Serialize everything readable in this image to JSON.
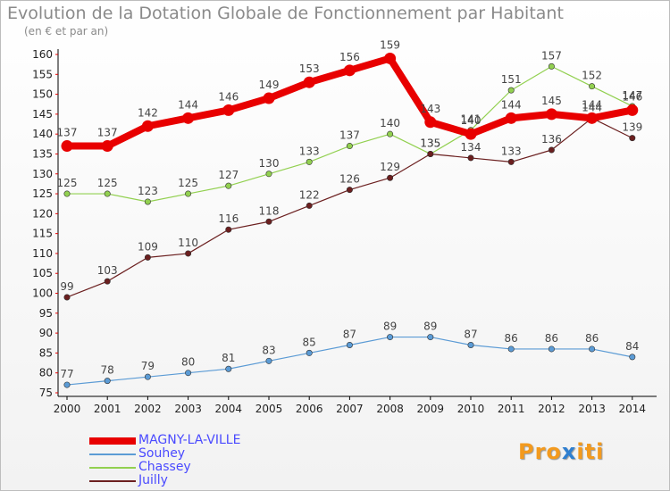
{
  "title": "Evolution de la Dotation Globale de Fonctionnement par Habitant",
  "subtitle": "(en € et par an)",
  "chart_data": {
    "type": "line",
    "categories": [
      "2000",
      "2001",
      "2002",
      "2003",
      "2004",
      "2005",
      "2006",
      "2007",
      "2008",
      "2009",
      "2010",
      "2011",
      "2012",
      "2013",
      "2014"
    ],
    "ylim": [
      75,
      160
    ],
    "yticks": [
      75,
      80,
      85,
      90,
      95,
      100,
      105,
      110,
      115,
      120,
      125,
      130,
      135,
      140,
      145,
      150,
      155,
      160
    ],
    "grid": false,
    "legend_position": "bottom-left",
    "series": [
      {
        "name": "MAGNY-LA-VILLE",
        "color": "#e80000",
        "values": [
          137,
          137,
          142,
          144,
          146,
          149,
          153,
          156,
          159,
          143,
          140,
          144,
          145,
          144,
          146
        ],
        "labels": [
          "137",
          "137",
          "142",
          "144",
          "146",
          "149",
          "153",
          "156",
          "159",
          "143",
          "140",
          "144",
          "145",
          "144",
          "146"
        ]
      },
      {
        "name": "Souhey",
        "color": "#5b9bd5",
        "values": [
          77,
          78,
          79,
          80,
          81,
          83,
          85,
          87,
          89,
          89,
          87,
          86,
          86,
          86,
          84
        ],
        "labels": [
          "77",
          "78",
          "79",
          "80",
          "81",
          "83",
          "85",
          "87",
          "89",
          "89",
          "87",
          "86",
          "86",
          "86",
          "84"
        ]
      },
      {
        "name": "Chassey",
        "color": "#92d050",
        "values": [
          125,
          125,
          123,
          125,
          127,
          130,
          133,
          137,
          140,
          135,
          141,
          151,
          157,
          152,
          147
        ],
        "labels": [
          "125",
          "125",
          "123",
          "125",
          "127",
          "130",
          "133",
          "137",
          "140",
          "135",
          "141",
          "151",
          "157",
          "152",
          "147"
        ]
      },
      {
        "name": "Juilly",
        "color": "#6b1f1f",
        "values": [
          99,
          103,
          109,
          110,
          116,
          118,
          122,
          126,
          129,
          135,
          134,
          133,
          136,
          144,
          139
        ],
        "labels": [
          "99",
          "103",
          "109",
          "110",
          "116",
          "118",
          "122",
          "126",
          "129",
          "135",
          "134",
          "133",
          "136",
          "144",
          "139"
        ]
      }
    ]
  },
  "legend": {
    "label_color": "#4a4aff"
  },
  "logo": {
    "text_start": "Pro",
    "text_mid": "x",
    "text_end": "iti"
  }
}
